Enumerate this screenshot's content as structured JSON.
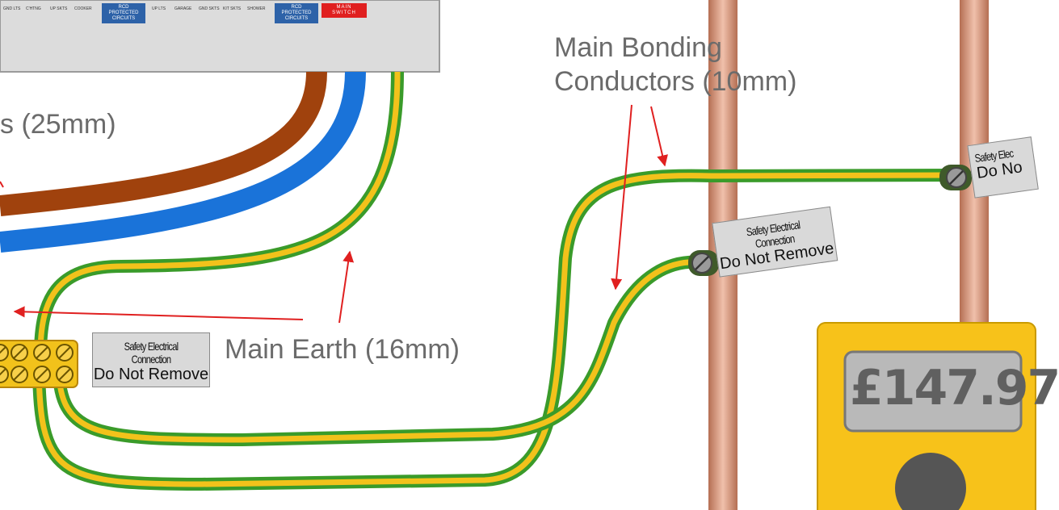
{
  "consumer_unit": {
    "ways": [
      "GND LTS",
      "C'HTNG",
      "UP SKTS",
      "COOKER",
      "UP LTS",
      "GARAGE",
      "GND SKTS",
      "KIT SKTS",
      "SHOWER"
    ],
    "rcd_label_1": "RCD PROTECTED CIRCUITS",
    "rcd_label_2": "RCD PROTECTED CIRCUITS",
    "main_switch": "MAIN SWITCH"
  },
  "labels": {
    "tails": "s (25mm)",
    "main_bonding_line1": "Main Bonding",
    "main_bonding_line2": "Conductors (10mm)",
    "main_earth": "Main Earth (16mm)"
  },
  "tags": {
    "earth_block": {
      "line1": "Safety Electrical Connection",
      "line2": "Do Not Remove"
    },
    "pipe_middle": {
      "line1": "Safety Electrical Connection",
      "line2": "Do Not Remove"
    },
    "pipe_right": {
      "line1": "Safety Elec",
      "line2": "Do No"
    }
  },
  "meter": {
    "reading": "£147.97"
  },
  "colors": {
    "live": "#a0420d",
    "neutral": "#1a73d9",
    "earth_green": "#3a9b2a",
    "earth_yellow": "#f2c21b",
    "copper": "#d89a7e",
    "arrow": "#e02020",
    "meter_body": "#f7c21a"
  }
}
